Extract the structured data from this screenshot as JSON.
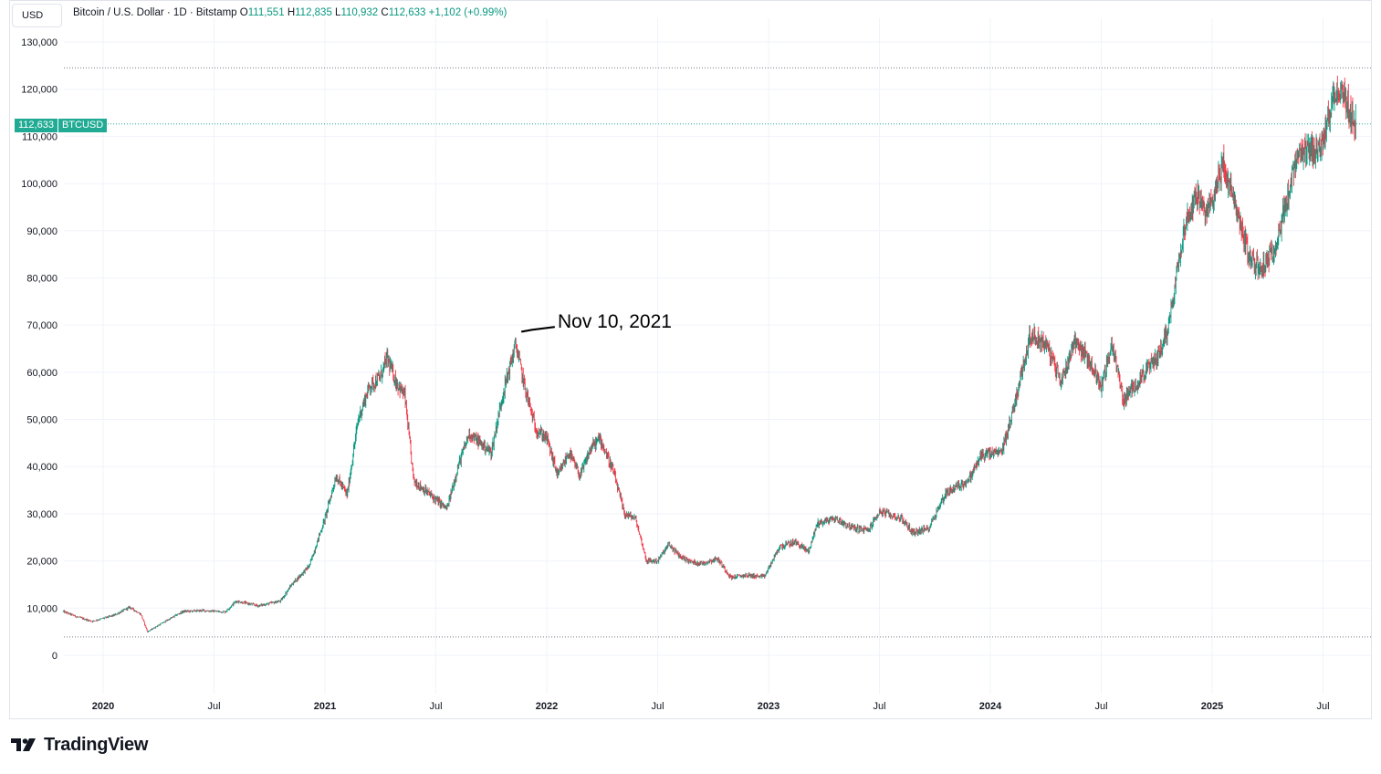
{
  "header": {
    "currency": "USD",
    "symbol_title": "Bitcoin / U.S. Dollar · 1D · Bitstamp",
    "ohlc": [
      {
        "key": "O",
        "value": "111,551"
      },
      {
        "key": "H",
        "value": "112,835"
      },
      {
        "key": "L",
        "value": "110,932"
      },
      {
        "key": "C",
        "value": "112,633"
      }
    ],
    "change": "+1,102 (+0.99%)"
  },
  "price_tag": {
    "price": "112,633",
    "symbol": "BTCUSD"
  },
  "annotation": {
    "text": "Nov 10, 2021",
    "x": 2021.86,
    "y": 69000
  },
  "branding": {
    "logo_text": "TradingView"
  },
  "colors": {
    "up": "#089981",
    "down": "#f23645",
    "grid": "#f0f3fa",
    "tag": "#22ab94"
  },
  "chart_data": {
    "type": "candlestick",
    "title": "Bitcoin / U.S. Dollar · 1D · Bitstamp",
    "xlabel": "",
    "ylabel": "USD",
    "ylim": [
      0,
      130000
    ],
    "xlim": [
      2019.82,
      2025.65
    ],
    "y_ticks": [
      0,
      10000,
      20000,
      30000,
      40000,
      50000,
      60000,
      70000,
      80000,
      90000,
      100000,
      110000,
      120000,
      130000
    ],
    "y_tick_labels": [
      "0",
      "10,000",
      "20,000",
      "30,000",
      "40,000",
      "50,000",
      "60,000",
      "70,000",
      "80,000",
      "90,000",
      "100,000",
      "110,000",
      "120,000",
      "130,000"
    ],
    "x_ticks": [
      {
        "t": 2020.0,
        "label": "2020",
        "bold": true
      },
      {
        "t": 2020.5,
        "label": "Jul",
        "bold": false
      },
      {
        "t": 2021.0,
        "label": "2021",
        "bold": true
      },
      {
        "t": 2021.5,
        "label": "Jul",
        "bold": false
      },
      {
        "t": 2022.0,
        "label": "2022",
        "bold": true
      },
      {
        "t": 2022.5,
        "label": "Jul",
        "bold": false
      },
      {
        "t": 2023.0,
        "label": "2023",
        "bold": true
      },
      {
        "t": 2023.5,
        "label": "Jul",
        "bold": false
      },
      {
        "t": 2024.0,
        "label": "2024",
        "bold": true
      },
      {
        "t": 2024.5,
        "label": "Jul",
        "bold": false
      },
      {
        "t": 2025.0,
        "label": "2025",
        "bold": true
      },
      {
        "t": 2025.5,
        "label": "Jul",
        "bold": false
      }
    ],
    "high_line": 124500,
    "low_line": 3900,
    "last_price": 112633,
    "series": [
      {
        "name": "BTCUSD close (approx.)",
        "points": [
          [
            2019.82,
            9300
          ],
          [
            2019.88,
            8200
          ],
          [
            2019.95,
            7200
          ],
          [
            2020.05,
            8500
          ],
          [
            2020.12,
            10200
          ],
          [
            2020.17,
            8700
          ],
          [
            2020.2,
            5000
          ],
          [
            2020.28,
            7200
          ],
          [
            2020.36,
            9300
          ],
          [
            2020.45,
            9500
          ],
          [
            2020.55,
            9200
          ],
          [
            2020.6,
            11500
          ],
          [
            2020.7,
            10500
          ],
          [
            2020.8,
            11500
          ],
          [
            2020.85,
            15000
          ],
          [
            2020.93,
            19000
          ],
          [
            2021.0,
            29000
          ],
          [
            2021.05,
            38000
          ],
          [
            2021.1,
            34000
          ],
          [
            2021.15,
            50000
          ],
          [
            2021.2,
            57000
          ],
          [
            2021.25,
            59000
          ],
          [
            2021.28,
            63000
          ],
          [
            2021.32,
            58000
          ],
          [
            2021.36,
            55000
          ],
          [
            2021.4,
            37000
          ],
          [
            2021.45,
            35000
          ],
          [
            2021.5,
            33000
          ],
          [
            2021.55,
            31000
          ],
          [
            2021.6,
            40000
          ],
          [
            2021.65,
            47000
          ],
          [
            2021.7,
            45000
          ],
          [
            2021.75,
            43000
          ],
          [
            2021.8,
            55000
          ],
          [
            2021.86,
            66000
          ],
          [
            2021.9,
            57000
          ],
          [
            2021.95,
            48000
          ],
          [
            2022.0,
            46000
          ],
          [
            2022.05,
            38000
          ],
          [
            2022.1,
            43000
          ],
          [
            2022.15,
            38000
          ],
          [
            2022.2,
            44000
          ],
          [
            2022.24,
            46000
          ],
          [
            2022.3,
            39000
          ],
          [
            2022.35,
            30000
          ],
          [
            2022.4,
            29000
          ],
          [
            2022.45,
            20000
          ],
          [
            2022.5,
            20000
          ],
          [
            2022.55,
            23500
          ],
          [
            2022.6,
            21000
          ],
          [
            2022.65,
            19800
          ],
          [
            2022.7,
            19500
          ],
          [
            2022.77,
            20500
          ],
          [
            2022.83,
            16500
          ],
          [
            2022.9,
            17000
          ],
          [
            2022.98,
            16600
          ],
          [
            2023.05,
            23000
          ],
          [
            2023.12,
            24000
          ],
          [
            2023.18,
            22000
          ],
          [
            2023.22,
            28000
          ],
          [
            2023.3,
            29000
          ],
          [
            2023.38,
            27000
          ],
          [
            2023.45,
            26500
          ],
          [
            2023.5,
            30500
          ],
          [
            2023.6,
            29000
          ],
          [
            2023.65,
            26000
          ],
          [
            2023.72,
            26800
          ],
          [
            2023.8,
            34500
          ],
          [
            2023.9,
            37000
          ],
          [
            2023.96,
            42500
          ],
          [
            2024.05,
            43000
          ],
          [
            2024.1,
            51500
          ],
          [
            2024.18,
            68000
          ],
          [
            2024.25,
            66000
          ],
          [
            2024.32,
            58000
          ],
          [
            2024.38,
            67000
          ],
          [
            2024.45,
            62000
          ],
          [
            2024.5,
            57000
          ],
          [
            2024.55,
            66000
          ],
          [
            2024.6,
            54000
          ],
          [
            2024.68,
            59000
          ],
          [
            2024.75,
            63000
          ],
          [
            2024.8,
            69000
          ],
          [
            2024.87,
            90000
          ],
          [
            2024.93,
            98000
          ],
          [
            2024.97,
            93000
          ],
          [
            2025.0,
            97000
          ],
          [
            2025.05,
            104000
          ],
          [
            2025.1,
            96000
          ],
          [
            2025.17,
            84000
          ],
          [
            2025.22,
            82000
          ],
          [
            2025.27,
            85000
          ],
          [
            2025.33,
            95000
          ],
          [
            2025.38,
            105000
          ],
          [
            2025.45,
            107000
          ],
          [
            2025.5,
            108000
          ],
          [
            2025.55,
            120000
          ],
          [
            2025.6,
            118000
          ],
          [
            2025.62,
            115000
          ],
          [
            2025.65,
            112633
          ]
        ]
      }
    ]
  }
}
